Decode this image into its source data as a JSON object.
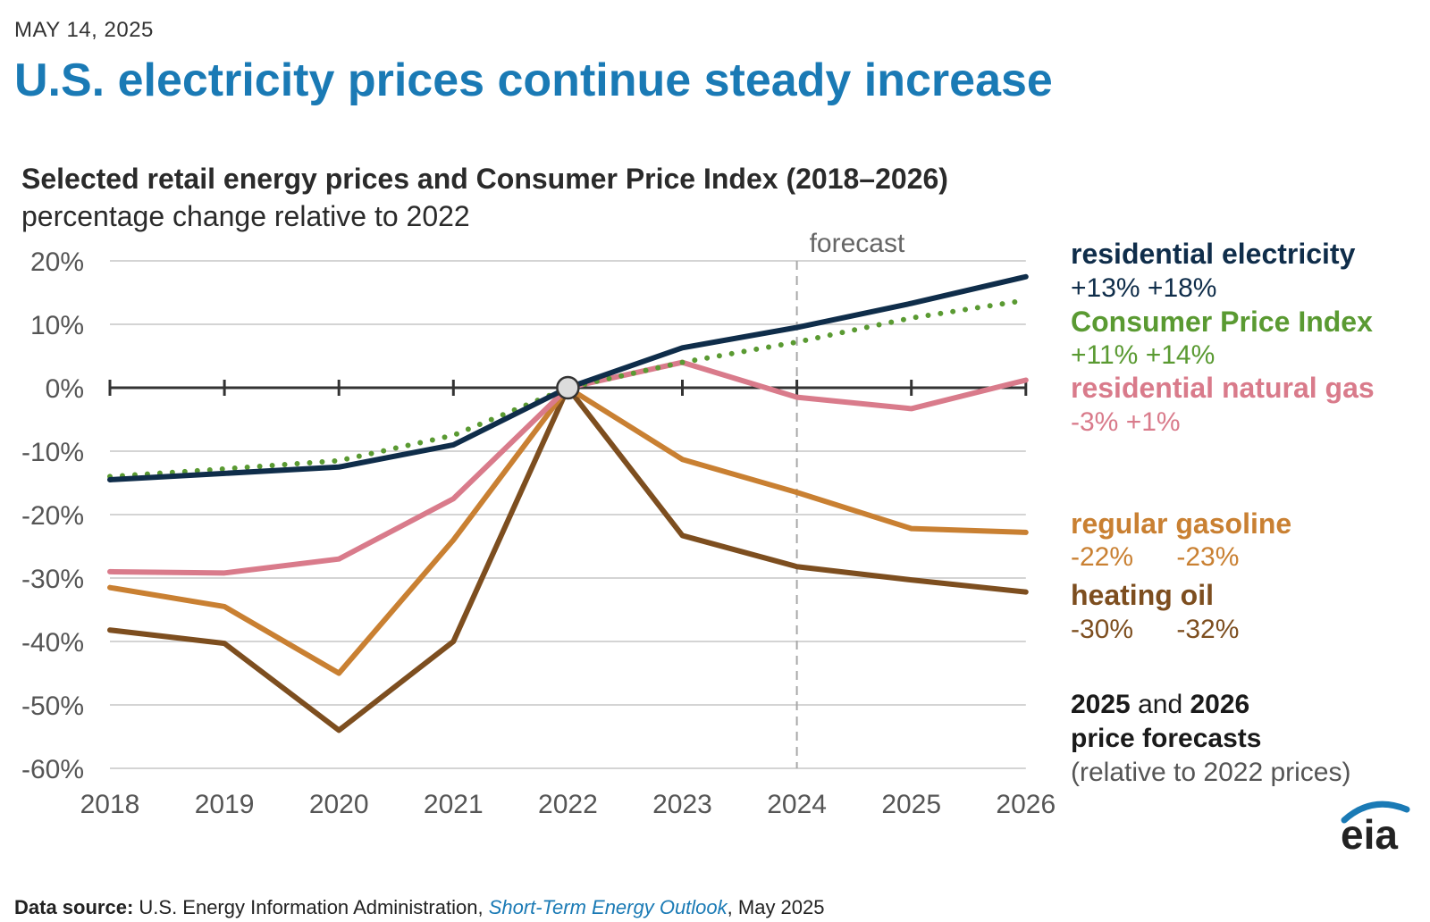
{
  "header": {
    "date": "MAY 14, 2025",
    "headline": "U.S. electricity prices continue steady increase"
  },
  "chart_data": {
    "type": "line",
    "title": "Selected retail energy prices and Consumer Price Index (2018–2026)",
    "subtitle": "percentage change relative to 2022",
    "x": [
      2018,
      2019,
      2020,
      2021,
      2022,
      2023,
      2024,
      2025,
      2026
    ],
    "x_tick_labels": [
      "2018",
      "2019",
      "2020",
      "2021",
      "2022",
      "2023",
      "2024",
      "2025",
      "2026"
    ],
    "ylim": [
      -60,
      20
    ],
    "y_ticks": [
      20,
      10,
      0,
      -10,
      -20,
      -30,
      -40,
      -50,
      -60
    ],
    "y_tick_labels": [
      "20%",
      "10%",
      "0%",
      "-10%",
      "-20%",
      "-30%",
      "-40%",
      "-50%",
      "-60%"
    ],
    "forecast_start": 2024,
    "forecast_label": "forecast",
    "grid": true,
    "baseline_marker": 2022,
    "series": [
      {
        "name": "residential electricity",
        "color": "#0f2d4a",
        "style": "solid",
        "values": [
          -14.5,
          -13.5,
          -12.5,
          -9,
          0,
          6.3,
          9.5,
          13.3,
          17.5
        ]
      },
      {
        "name": "Consumer Price Index",
        "color": "#5a9a32",
        "style": "dotted",
        "values": [
          -14,
          -12.8,
          -11.5,
          -7.5,
          0,
          4,
          7.2,
          11,
          13.8
        ]
      },
      {
        "name": "residential natural gas",
        "color": "#d97b8b",
        "style": "solid",
        "values": [
          -29,
          -29.2,
          -27,
          -17.5,
          0,
          4,
          -1.5,
          -3.3,
          1.2
        ]
      },
      {
        "name": "regular gasoline",
        "color": "#c98032",
        "style": "solid",
        "values": [
          -31.5,
          -34.5,
          -45,
          -24,
          0,
          -11.3,
          -16.5,
          -22.2,
          -22.8
        ]
      },
      {
        "name": "heating oil",
        "color": "#7d4e1f",
        "style": "solid",
        "values": [
          -38.2,
          -40.3,
          -54,
          -40,
          0,
          -23.3,
          -28.2,
          -30.3,
          -32.2
        ]
      }
    ],
    "legend_placement": "right"
  },
  "legend": [
    {
      "name": "residential electricity",
      "v2025": "+13%",
      "v2026": "+18%"
    },
    {
      "name": "Consumer Price Index",
      "v2025": "+11%",
      "v2026": "+14%"
    },
    {
      "name": "residential natural gas",
      "v2025": "-3%",
      "v2026": "+1%"
    },
    {
      "name": "regular gasoline",
      "v2025": "-22%",
      "v2026": "-23%"
    },
    {
      "name": "heating oil",
      "v2025": "-30%",
      "v2026": "-32%"
    }
  ],
  "note": {
    "y1": "2025",
    "and": " and ",
    "y2": "2026",
    "line2": "price forecasts",
    "line3": "(relative to 2022 prices)"
  },
  "footer": {
    "label": "Data source:",
    "text1": " U.S. Energy Information Administration, ",
    "link": "Short-Term Energy Outlook",
    "text2": ", May 2025"
  },
  "logo": {
    "text": "eia",
    "color": "#1a7ab5"
  }
}
